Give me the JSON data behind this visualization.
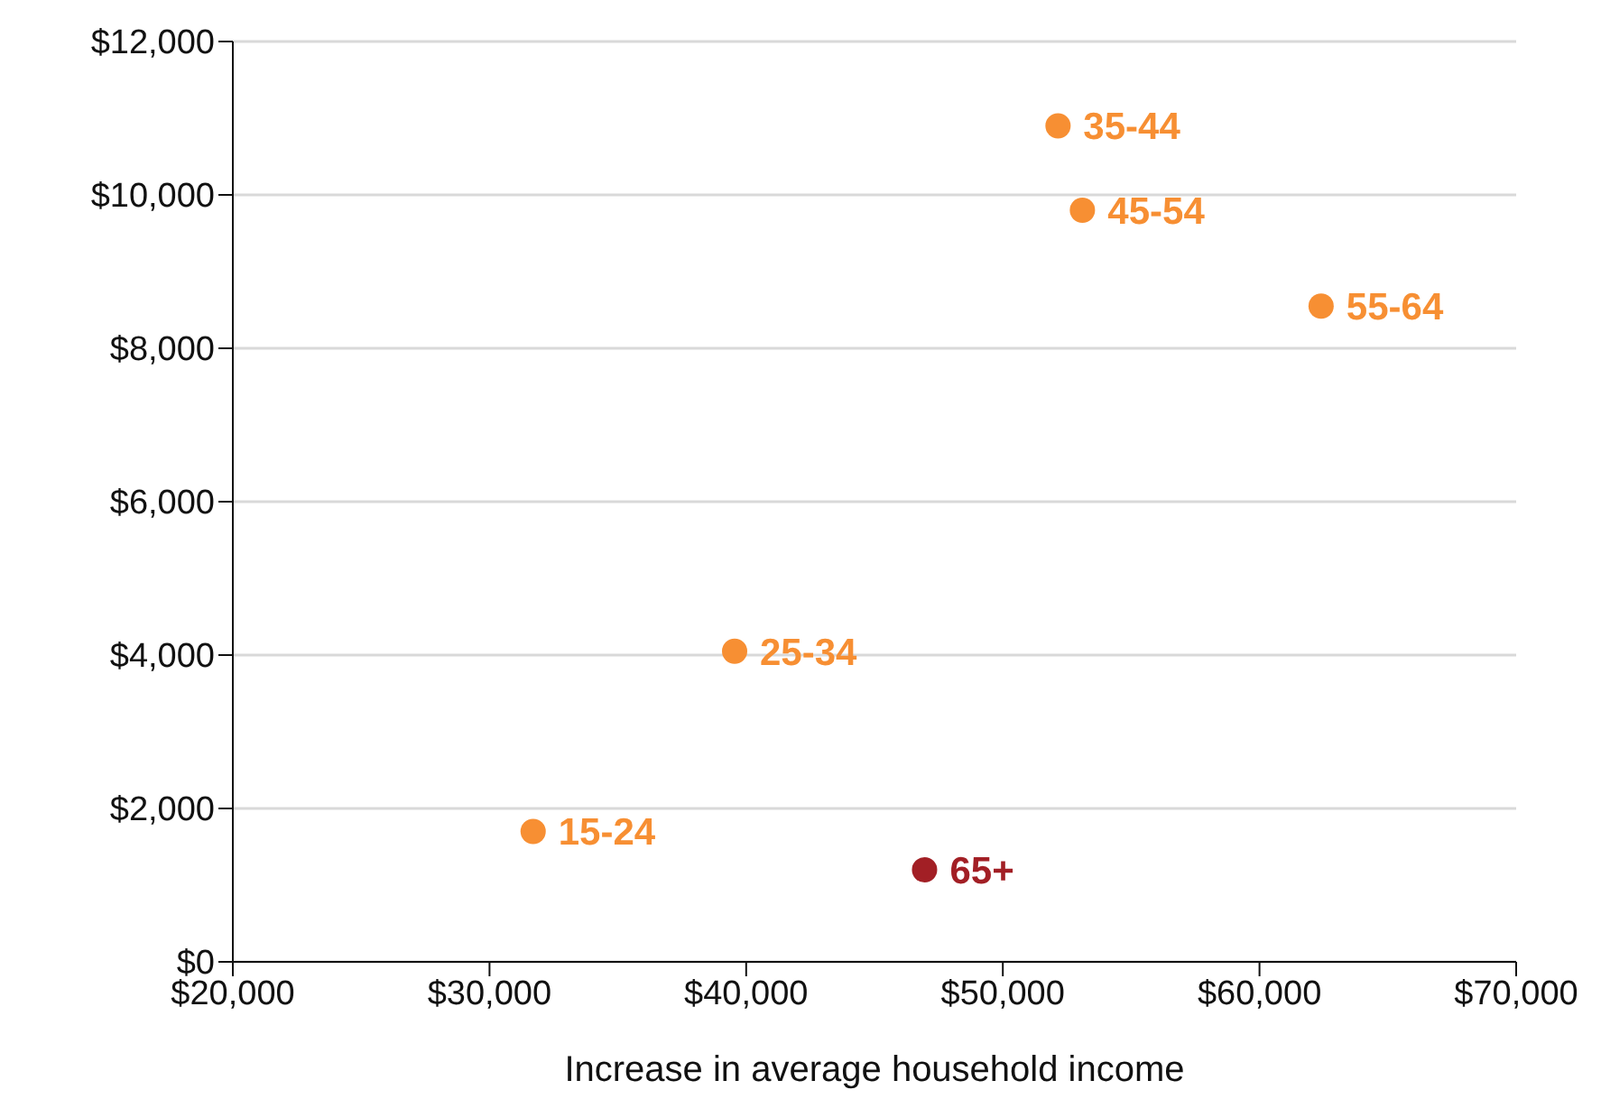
{
  "chart_data": {
    "type": "scatter",
    "xlabel": "Increase in average household income",
    "xlim": [
      20000,
      70000
    ],
    "xticks": [
      {
        "value": 20000,
        "label": "$20,000"
      },
      {
        "value": 30000,
        "label": "$30,000"
      },
      {
        "value": 40000,
        "label": "$40,000"
      },
      {
        "value": 50000,
        "label": "$50,000"
      },
      {
        "value": 60000,
        "label": "$60,000"
      },
      {
        "value": 70000,
        "label": "$70,000"
      }
    ],
    "ylim": [
      0,
      12000
    ],
    "yticks": [
      {
        "value": 0,
        "label": "$0"
      },
      {
        "value": 2000,
        "label": "$2,000"
      },
      {
        "value": 4000,
        "label": "$4,000"
      },
      {
        "value": 6000,
        "label": "$6,000"
      },
      {
        "value": 8000,
        "label": "$8,000"
      },
      {
        "value": 10000,
        "label": "$10,000"
      },
      {
        "value": 12000,
        "label": "$12,000"
      }
    ],
    "grid": "y",
    "marker": "circle",
    "series": [
      {
        "color": "#f78f33",
        "x": [
          31700,
          39550,
          52150,
          53100,
          62400
        ],
        "values": [
          1700,
          4050,
          10900,
          9800,
          8550
        ]
      },
      {
        "color": "#a21f25",
        "x": [
          46950
        ],
        "values": [
          1200
        ]
      }
    ],
    "annotations": [
      {
        "text": "15-24",
        "x": 31700,
        "y": 1700
      },
      {
        "text": "25-34",
        "x": 39550,
        "y": 4050
      },
      {
        "text": "35-44",
        "x": 52150,
        "y": 10900
      },
      {
        "text": "45-54",
        "x": 53100,
        "y": 9800
      },
      {
        "text": "55-64",
        "x": 62400,
        "y": 8550
      },
      {
        "text": "65+",
        "x": 46950,
        "y": 1200
      }
    ]
  }
}
